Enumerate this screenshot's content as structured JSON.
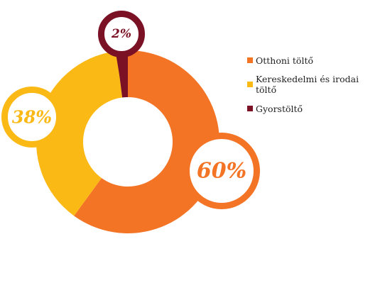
{
  "chart_data": {
    "type": "pie",
    "variant": "donut",
    "title": "",
    "slices": [
      {
        "label": "Otthoni töltő",
        "value": 60,
        "display": "60%",
        "color": "#F47425"
      },
      {
        "label": "Kereskedelmi és irodai töltő",
        "value": 38,
        "display": "38%",
        "color": "#FBB916"
      },
      {
        "label": "Gyorstöltő",
        "value": 2,
        "display": "2%",
        "color": "#7A1125"
      }
    ],
    "legend_position": "right"
  }
}
